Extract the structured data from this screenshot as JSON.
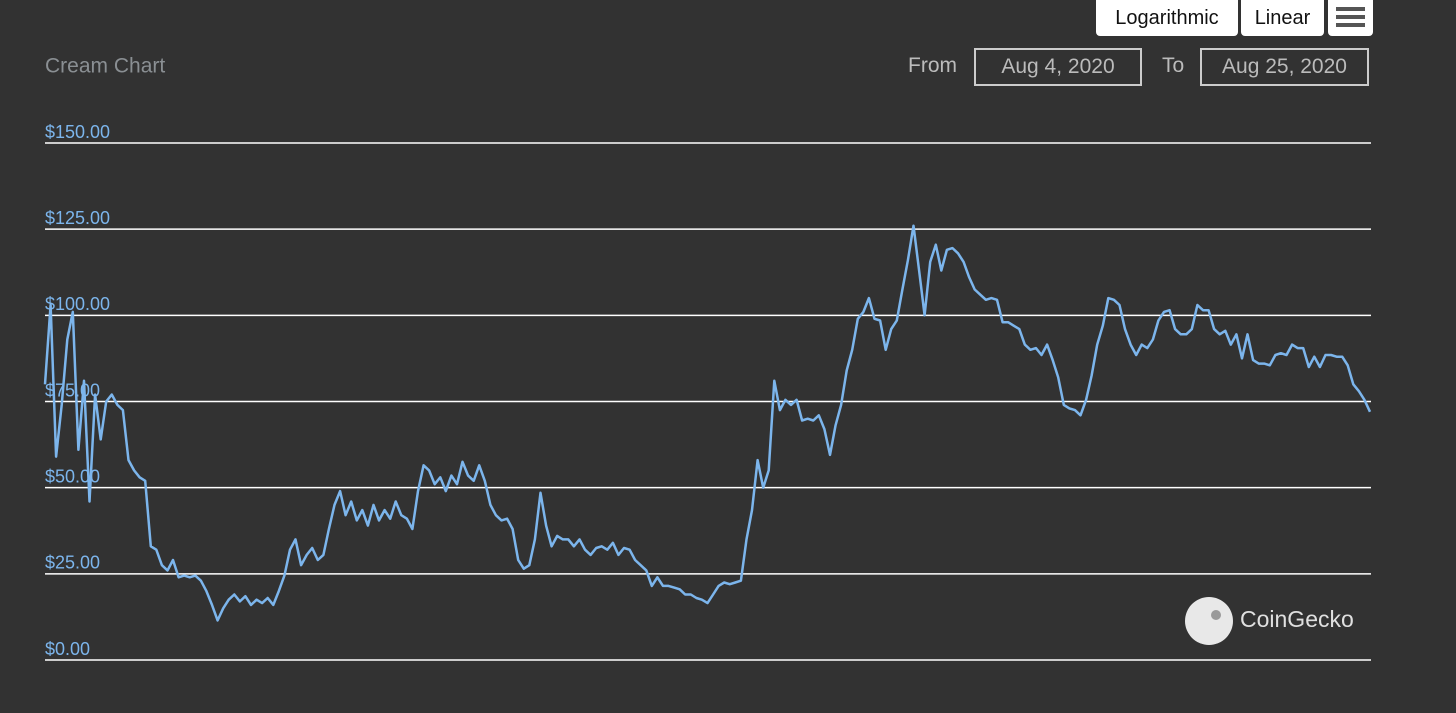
{
  "chart_data": {
    "type": "line",
    "title": "Cream Chart",
    "grid": true,
    "ylim": [
      0,
      150
    ],
    "yticks": [
      {
        "value": 0,
        "label": "$0.00"
      },
      {
        "value": 25,
        "label": "$25.00"
      },
      {
        "value": 50,
        "label": "$50.00"
      },
      {
        "value": 75,
        "label": "$75.00"
      },
      {
        "value": 100,
        "label": "$100.00"
      },
      {
        "value": 125,
        "label": "$125.00"
      },
      {
        "value": 150,
        "label": "$150.00"
      }
    ],
    "series": [
      {
        "color": "#7cb5ec",
        "values": [
          80,
          103,
          59,
          74,
          93,
          101,
          61,
          81,
          46,
          77,
          64,
          75,
          77,
          74,
          72.5,
          58,
          55,
          53,
          52,
          33,
          32,
          27.5,
          26,
          29,
          24,
          24.5,
          24,
          24.5,
          23,
          20,
          16,
          11.5,
          15,
          17.5,
          19,
          17,
          18.5,
          16,
          17.5,
          16.5,
          18,
          16,
          20,
          24.5,
          32,
          35,
          27.5,
          30.5,
          32.5,
          29,
          30.5,
          38,
          45,
          49,
          42,
          46,
          40.5,
          43.5,
          39,
          45,
          40.5,
          43.5,
          41,
          46,
          42,
          41,
          38,
          49,
          56.5,
          55,
          51,
          53,
          49,
          53.5,
          51,
          57.5,
          53.5,
          52,
          56.5,
          52,
          45,
          42,
          40.5,
          41,
          38,
          29,
          26.5,
          27.5,
          35,
          48.5,
          39,
          33,
          36,
          35,
          35,
          33,
          35,
          32,
          30.5,
          32.5,
          33,
          32,
          34,
          30.5,
          32.5,
          32,
          29,
          27.5,
          26,
          21.5,
          24,
          21.5,
          21.5,
          21,
          20.5,
          19,
          19,
          18,
          17.5,
          16.5,
          19,
          21.5,
          22.5,
          22,
          22.5,
          23,
          35,
          43.5,
          58,
          50,
          55,
          81,
          72.5,
          75.5,
          74,
          75.5,
          69.5,
          70,
          69.5,
          71,
          67,
          59.5,
          68,
          74,
          84,
          90,
          99,
          101,
          105,
          99,
          98.5,
          90,
          96,
          98.5,
          107.5,
          116,
          126,
          113,
          100,
          115.5,
          120.5,
          113,
          119,
          119.5,
          118,
          115.5,
          111,
          107.5,
          106,
          104.5,
          105,
          104.5,
          98,
          98,
          97,
          96,
          91.5,
          90,
          90.5,
          88.5,
          91.5,
          87,
          82,
          74,
          73,
          72.5,
          71,
          75.5,
          82.5,
          91.5,
          97,
          105,
          104.5,
          103,
          96,
          91.5,
          88.5,
          91.5,
          90.5,
          93,
          98.5,
          101,
          101.5,
          96,
          94.5,
          94.5,
          96,
          103,
          101.5,
          101.5,
          96,
          94.5,
          95.5,
          91.5,
          94.5,
          87.5,
          94.5,
          87,
          86,
          86,
          85.5,
          88.5,
          89,
          88.5,
          91.5,
          90.5,
          90.5,
          85,
          88,
          85,
          88.5,
          88.5,
          88,
          88,
          85.5,
          80,
          78,
          75.5,
          72
        ]
      }
    ]
  },
  "toolbar": {
    "buttons": [
      "Logarithmic",
      "Linear"
    ]
  },
  "range": {
    "from_label": "From",
    "from": "Aug 4, 2020",
    "to_label": "To",
    "to": "Aug 25, 2020"
  },
  "watermark": "CoinGecko"
}
